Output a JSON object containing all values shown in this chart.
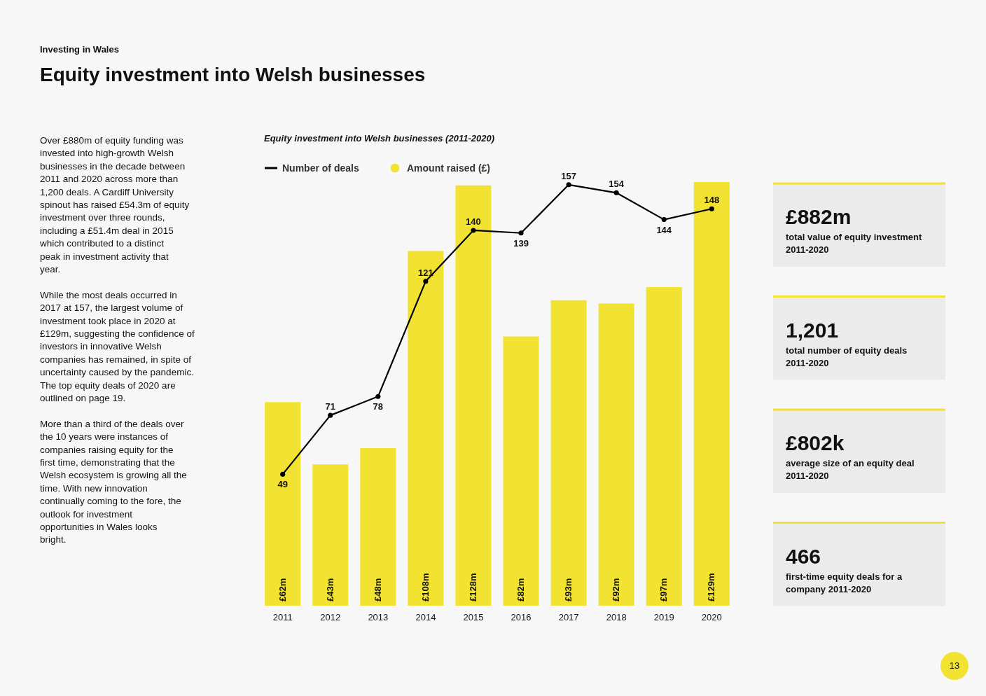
{
  "chart_data": {
    "type": "bar",
    "title": "Equity investment into Welsh businesses",
    "subtitle": "Equity investment into Welsh businesses (2011-2020)",
    "categories": [
      "2011",
      "2012",
      "2013",
      "2014",
      "2015",
      "2016",
      "2017",
      "2018",
      "2019",
      "2020"
    ],
    "series": [
      {
        "name": "Number of deals",
        "type": "line",
        "axis": "y2",
        "color": "#000000",
        "values": [
          49,
          71,
          78,
          121,
          140,
          139,
          157,
          154,
          144,
          148
        ],
        "value_labels": [
          "49",
          "71",
          "78",
          "121",
          "140",
          "139",
          "157",
          "154",
          "144",
          "148"
        ]
      },
      {
        "name": "Amount raised (£)",
        "color": "#f2e232",
        "values": [
          62,
          43,
          48,
          108,
          128,
          82,
          93,
          92,
          97,
          129
        ],
        "value_labels": [
          "£62m",
          "£43m",
          "£48m",
          "£108m",
          "£128m",
          "£82m",
          "£93m",
          "£92m",
          "£97m",
          "£129m"
        ]
      }
    ],
    "ylim": [
      0,
      129
    ],
    "y2lim": [
      0,
      158
    ],
    "tick_labels": "x",
    "legend": "top left",
    "marker": "circle",
    "grid": false,
    "annotations": [
      "Investing in Wales",
      "Over £880m of equity funding was invested into high-growth Welsh businesses in the decade between 2011 and 2020 across more than 1,200 deals. A Cardiff University spinout has raised £54.3m of equity investment over three rounds, including a £51.4m deal in 2015 which contributed to a distinct peak in investment activity that year.",
      "While the most deals occurred in 2017 at 157, the largest volume of investment took place in 2020 at £129m, suggesting the confidence of investors in innovative Welsh companies has remained, in spite of uncertainty caused by the pandemic. The top equity deals of 2020 are outlined on page 19.",
      "More than a third of the deals over the 10 years were instances of companies raising equity for the first time, demonstrating that the Welsh ecosystem is growing all the time. With new innovation continually coming to the fore, the outlook for investment opportunities in Wales looks bright.",
      "£882m",
      "total value of equity investment 2011-2020",
      "1,201",
      "total number of equity deals 2011-2020",
      "£802k",
      "average size of an equity deal 2011-2020",
      "466",
      "first-time equity deals for a company 2011-2020",
      "13"
    ]
  }
}
